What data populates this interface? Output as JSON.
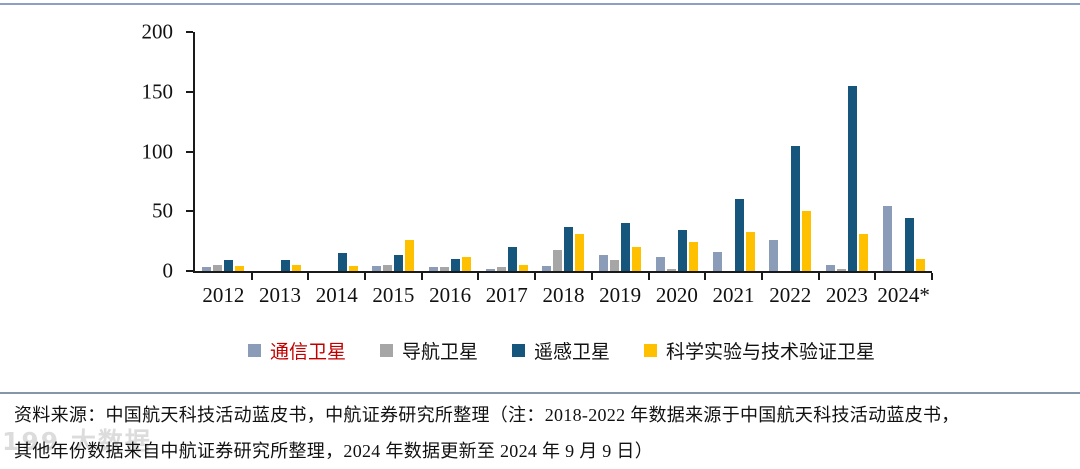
{
  "page": {
    "top_border_color": "#8E9FC4",
    "divider_color": "#8496A8",
    "axis_color": "#1a1a1a"
  },
  "chart_data": {
    "type": "bar",
    "title": "",
    "xlabel": "",
    "ylabel": "",
    "ylim": [
      0,
      200
    ],
    "yticks": [
      0,
      50,
      100,
      150,
      200
    ],
    "grid": false,
    "legend_position": "bottom",
    "categories": [
      "2012",
      "2013",
      "2014",
      "2015",
      "2016",
      "2017",
      "2018",
      "2019",
      "2020",
      "2021",
      "2022",
      "2023",
      "2024*"
    ],
    "series": [
      {
        "key": "communication",
        "name": "通信卫星",
        "color": "#8A9CB8",
        "label_color": "#C00000",
        "values": [
          3,
          0,
          0,
          4,
          3,
          2,
          4,
          13,
          12,
          16,
          26,
          5,
          54
        ]
      },
      {
        "key": "navigation",
        "name": "导航卫星",
        "color": "#A6A6A6",
        "label_color": "#111111",
        "values": [
          5,
          0,
          0,
          5,
          3,
          3,
          18,
          9,
          2,
          0,
          0,
          2,
          0
        ]
      },
      {
        "key": "remote-sensing",
        "name": "遥感卫星",
        "color": "#16567C",
        "label_color": "#111111",
        "values": [
          9,
          9,
          15,
          13,
          10,
          20,
          37,
          40,
          34,
          60,
          105,
          155,
          44
        ]
      },
      {
        "key": "science-tech",
        "name": "科学实验与技术验证卫星",
        "color": "#FFC000",
        "label_color": "#111111",
        "values": [
          4,
          5,
          4,
          26,
          12,
          5,
          31,
          20,
          24,
          33,
          50,
          31,
          10
        ]
      }
    ]
  },
  "source": {
    "line1": "资料来源：中国航天科技活动蓝皮书，中航证券研究所整理（注：2018-2022 年数据来源于中国航天科技活动蓝皮书，",
    "line2": "其他年份数据来自中航证券研究所整理，2024 年数据更新至 2024 年 9 月 9 日）"
  },
  "watermark": {
    "text": "199 大数据"
  }
}
